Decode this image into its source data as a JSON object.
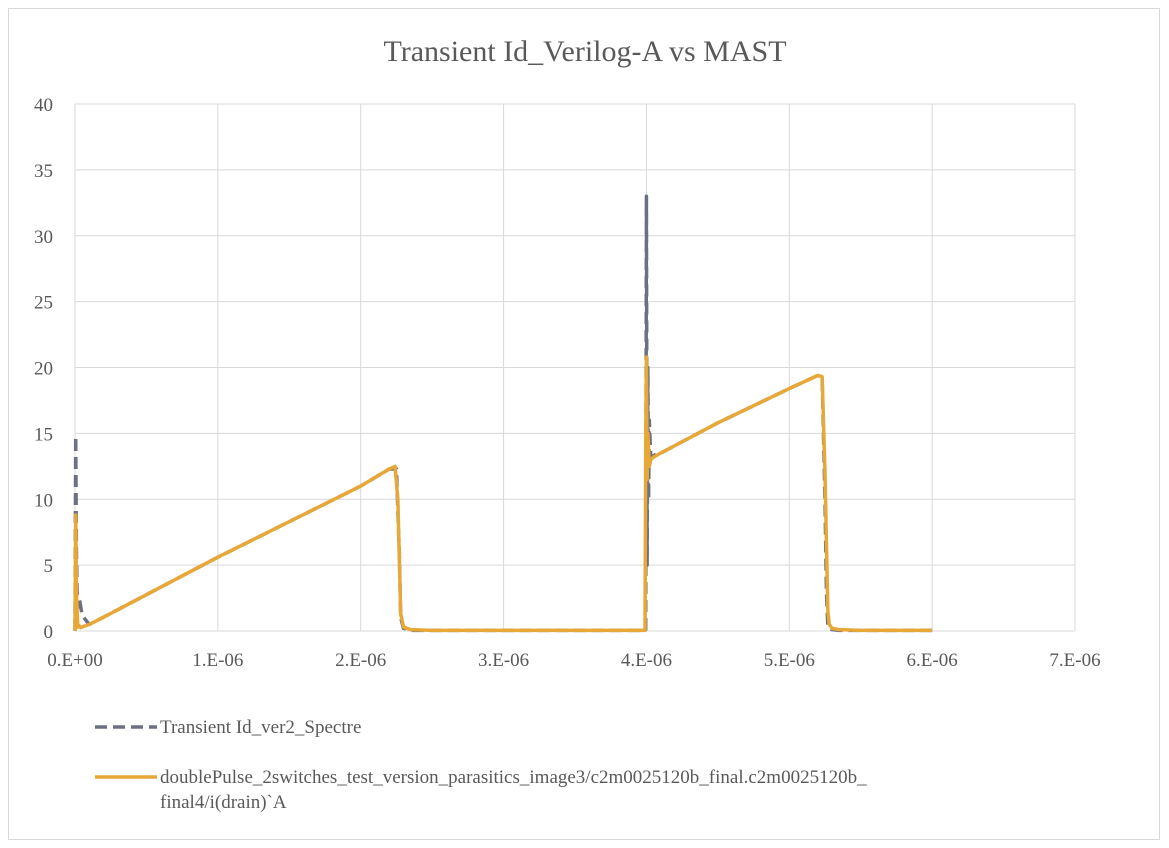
{
  "chart_data": {
    "type": "line",
    "title": "Transient Id_Verilog-A vs MAST",
    "xlabel": "",
    "ylabel": "",
    "xlim": [
      0,
      7e-06
    ],
    "ylim": [
      0,
      40
    ],
    "x_ticks": [
      0,
      1e-06,
      2e-06,
      3e-06,
      4e-06,
      5e-06,
      6e-06,
      7e-06
    ],
    "x_tick_labels": [
      "0.E+00",
      "1.E-06",
      "2.E-06",
      "3.E-06",
      "4.E-06",
      "5.E-06",
      "6.E-06",
      "7.E-06"
    ],
    "y_ticks": [
      0,
      5,
      10,
      15,
      20,
      25,
      30,
      35,
      40
    ],
    "y_tick_labels": [
      "0",
      "5",
      "10",
      "15",
      "20",
      "25",
      "30",
      "35",
      "40"
    ],
    "grid": true,
    "legend_position": "bottom",
    "series": [
      {
        "name": "Transient Id_ver2_Spectre",
        "color": "#6b7083",
        "style": "dashed",
        "x": [
          0,
          5e-09,
          1e-08,
          1.5e-08,
          2e-08,
          3e-08,
          5e-08,
          7e-08,
          1e-07,
          2e-07,
          1e-06,
          2e-06,
          2.2e-06,
          2.25e-06,
          2.27e-06,
          2.28e-06,
          2.3e-06,
          2.35e-06,
          2.5e-06,
          3e-06,
          3.5e-06,
          3.99e-06,
          3.995e-06,
          4e-06,
          4.005e-06,
          4.01e-06,
          4.015e-06,
          4.02e-06,
          4.03e-06,
          4.05e-06,
          4.08e-06,
          4.1e-06,
          4.5e-06,
          5e-06,
          5.2e-06,
          5.23e-06,
          5.25e-06,
          5.26e-06,
          5.27e-06,
          5.28e-06,
          5.3e-06,
          5.35e-06,
          5.5e-06,
          6e-06
        ],
        "y": [
          0,
          14.8,
          6,
          3,
          1.8,
          2.5,
          1.2,
          0.9,
          0.5,
          1.05,
          5.6,
          11.0,
          12.3,
          12.3,
          6,
          1,
          0.2,
          0.05,
          0.05,
          0.05,
          0.05,
          0.05,
          0.1,
          33,
          5,
          20,
          10,
          16,
          13.2,
          13.3,
          13.5,
          13.5,
          15.8,
          18.4,
          19.4,
          19.2,
          10,
          3,
          0.3,
          0.2,
          0.1,
          0.05,
          0.05,
          0.05
        ]
      },
      {
        "name": "doublePulse_2switches_test_version_parasitics_image3/c2m0025120b_final.c2m0025120b_final4/i(drain)`A",
        "color": "#e8a838",
        "style": "solid",
        "x": [
          0,
          5e-09,
          1e-08,
          1.5e-08,
          2e-08,
          3e-08,
          4e-08,
          6e-08,
          1e-07,
          2e-07,
          1e-06,
          2e-06,
          2.2e-06,
          2.24e-06,
          2.26e-06,
          2.28e-06,
          2.3e-06,
          2.35e-06,
          2.5e-06,
          3e-06,
          3.5e-06,
          3.99e-06,
          3.995e-06,
          4e-06,
          4.005e-06,
          4.01e-06,
          4.02e-06,
          4.03e-06,
          4.05e-06,
          4.1e-06,
          4.5e-06,
          5e-06,
          5.2e-06,
          5.23e-06,
          5.25e-06,
          5.27e-06,
          5.28e-06,
          5.3e-06,
          5.35e-06,
          5.5e-06,
          6e-06
        ],
        "y": [
          0,
          8.8,
          3,
          1.5,
          0.3,
          0.4,
          0.25,
          0.35,
          0.5,
          1.05,
          5.6,
          11.0,
          12.3,
          12.5,
          10,
          1.3,
          0.3,
          0.1,
          0.05,
          0.05,
          0.05,
          0.05,
          14,
          20.8,
          11.5,
          15,
          12.5,
          13.0,
          13.2,
          13.5,
          15.8,
          18.4,
          19.4,
          19.3,
          12,
          1.5,
          0.5,
          0.2,
          0.1,
          0.05,
          0.05
        ]
      }
    ]
  }
}
